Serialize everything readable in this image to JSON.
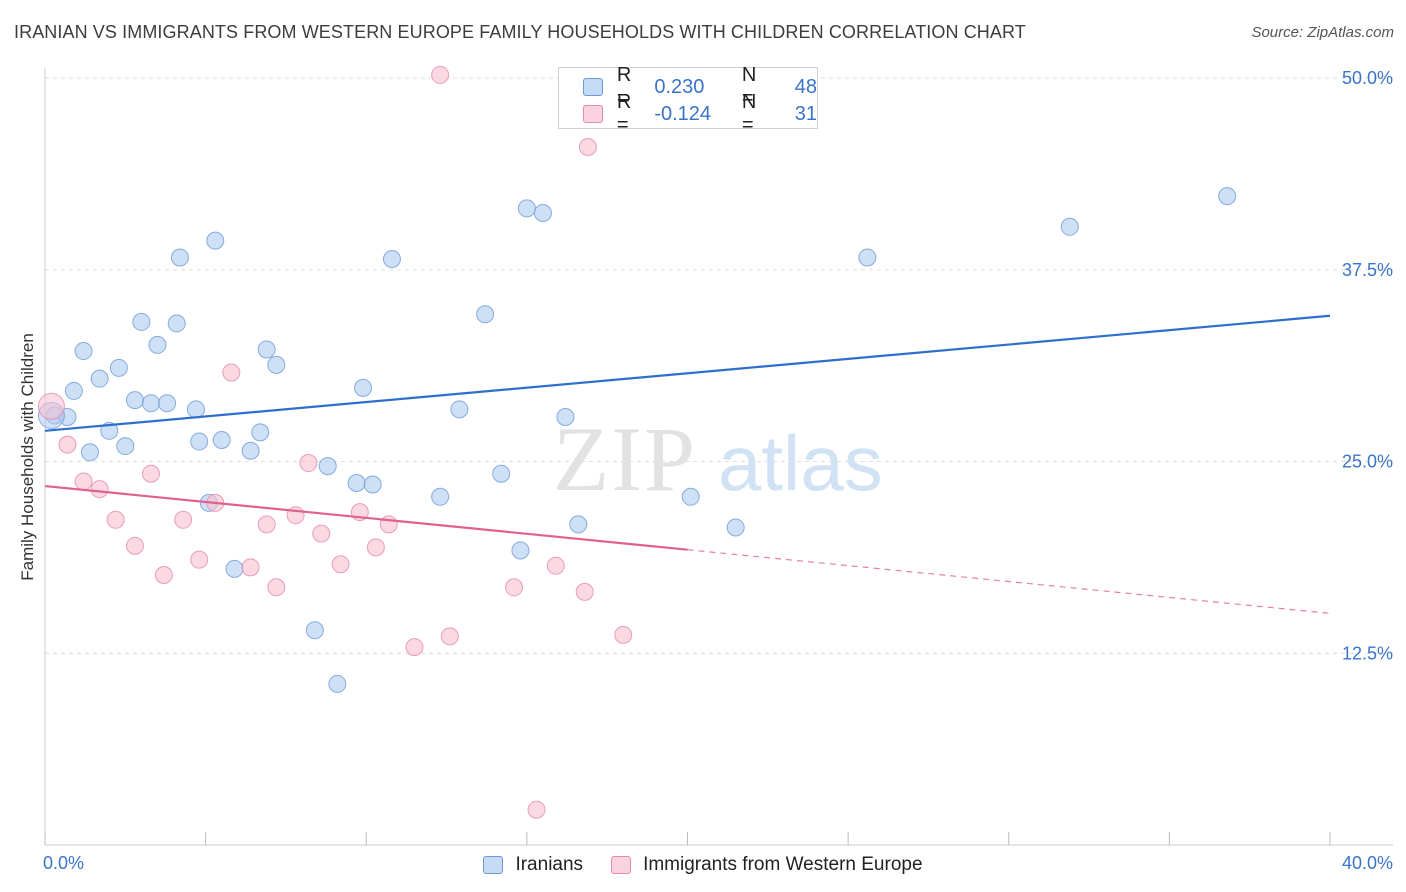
{
  "title": "IRANIAN VS IMMIGRANTS FROM WESTERN EUROPE FAMILY HOUSEHOLDS WITH CHILDREN CORRELATION CHART",
  "source": "Source: ZipAtlas.com",
  "watermark": {
    "zip": "ZIP",
    "atlas": "atlas"
  },
  "colors": {
    "blue_fill": "#aecbf0",
    "blue_stroke": "#6d9ad6",
    "blue_line": "#2f6fcc",
    "pink_fill": "#f7bfd1",
    "pink_stroke": "#e58aa8",
    "pink_line": "#e0608e",
    "tick_label": "#3a74c9",
    "grid": "#dedede"
  },
  "legend_top": {
    "series1": {
      "r_label": "R =",
      "r_value": "0.230",
      "n_label": "N =",
      "n_value": "48"
    },
    "series2": {
      "r_label": "R =",
      "r_value": "-0.124",
      "n_label": "N =",
      "n_value": "31"
    }
  },
  "chart_data": {
    "type": "scatter",
    "title": "IRANIAN VS IMMIGRANTS FROM WESTERN EUROPE FAMILY HOUSEHOLDS WITH CHILDREN CORRELATION CHART",
    "xlabel": "",
    "ylabel": "Family Households with Children",
    "xlim": [
      0,
      40
    ],
    "ylim": [
      0,
      50
    ],
    "x_tick_labels": [
      "0.0%",
      "40.0%"
    ],
    "y_ticks": [
      12.5,
      25.0,
      37.5,
      50.0
    ],
    "y_tick_labels": [
      "12.5%",
      "25.0%",
      "37.5%",
      "50.0%"
    ],
    "grid": true,
    "legend_position": "bottom",
    "series": [
      {
        "name": "Iranians",
        "color": "#aecbf0",
        "trend": {
          "x": [
            0,
            40
          ],
          "y": [
            27.0,
            34.5
          ],
          "dashed_from": null
        },
        "points": [
          [
            0.3,
            28.0
          ],
          [
            0.7,
            27.9
          ],
          [
            0.9,
            29.6
          ],
          [
            1.2,
            32.2
          ],
          [
            1.4,
            25.6
          ],
          [
            1.7,
            30.4
          ],
          [
            2.0,
            27.0
          ],
          [
            2.3,
            31.1
          ],
          [
            2.5,
            26.0
          ],
          [
            2.8,
            29.0
          ],
          [
            3.0,
            34.1
          ],
          [
            3.3,
            28.8
          ],
          [
            3.5,
            32.6
          ],
          [
            3.8,
            28.8
          ],
          [
            4.1,
            34.0
          ],
          [
            4.2,
            38.3
          ],
          [
            4.7,
            28.4
          ],
          [
            4.8,
            26.3
          ],
          [
            5.1,
            22.3
          ],
          [
            5.3,
            39.4
          ],
          [
            5.5,
            26.4
          ],
          [
            5.9,
            18.0
          ],
          [
            6.4,
            25.7
          ],
          [
            6.7,
            26.9
          ],
          [
            6.9,
            32.3
          ],
          [
            7.2,
            31.3
          ],
          [
            8.4,
            14.0
          ],
          [
            8.8,
            24.7
          ],
          [
            9.1,
            10.5
          ],
          [
            9.7,
            23.6
          ],
          [
            9.9,
            29.8
          ],
          [
            10.2,
            23.5
          ],
          [
            10.8,
            38.2
          ],
          [
            12.3,
            22.7
          ],
          [
            12.9,
            28.4
          ],
          [
            13.7,
            34.6
          ],
          [
            14.2,
            24.2
          ],
          [
            14.8,
            19.2
          ],
          [
            15.0,
            41.5
          ],
          [
            15.5,
            41.2
          ],
          [
            16.2,
            27.9
          ],
          [
            16.6,
            20.9
          ],
          [
            20.1,
            22.7
          ],
          [
            21.5,
            20.7
          ],
          [
            25.6,
            38.3
          ],
          [
            31.9,
            40.3
          ],
          [
            36.8,
            42.3
          ],
          [
            0.2,
            28.0
          ]
        ]
      },
      {
        "name": "Immigrants from Western Europe",
        "color": "#f7bfd1",
        "trend": {
          "x": [
            0,
            40
          ],
          "y": [
            23.4,
            15.1
          ],
          "dashed_from": 20.0
        },
        "points": [
          [
            0.2,
            28.6
          ],
          [
            0.7,
            26.1
          ],
          [
            1.2,
            23.7
          ],
          [
            1.7,
            23.2
          ],
          [
            2.2,
            21.2
          ],
          [
            2.8,
            19.5
          ],
          [
            3.3,
            24.2
          ],
          [
            3.7,
            17.6
          ],
          [
            4.3,
            21.2
          ],
          [
            4.8,
            18.6
          ],
          [
            5.3,
            22.3
          ],
          [
            5.8,
            30.8
          ],
          [
            6.4,
            18.1
          ],
          [
            6.9,
            20.9
          ],
          [
            7.2,
            16.8
          ],
          [
            7.8,
            21.5
          ],
          [
            8.2,
            24.9
          ],
          [
            8.6,
            20.3
          ],
          [
            9.2,
            18.3
          ],
          [
            9.8,
            21.7
          ],
          [
            10.3,
            19.4
          ],
          [
            10.7,
            20.9
          ],
          [
            11.5,
            12.9
          ],
          [
            12.6,
            13.6
          ],
          [
            12.3,
            50.2
          ],
          [
            14.6,
            16.8
          ],
          [
            15.3,
            2.3
          ],
          [
            15.9,
            18.2
          ],
          [
            16.8,
            16.5
          ],
          [
            16.9,
            45.5
          ],
          [
            18.0,
            13.7
          ]
        ]
      }
    ]
  }
}
